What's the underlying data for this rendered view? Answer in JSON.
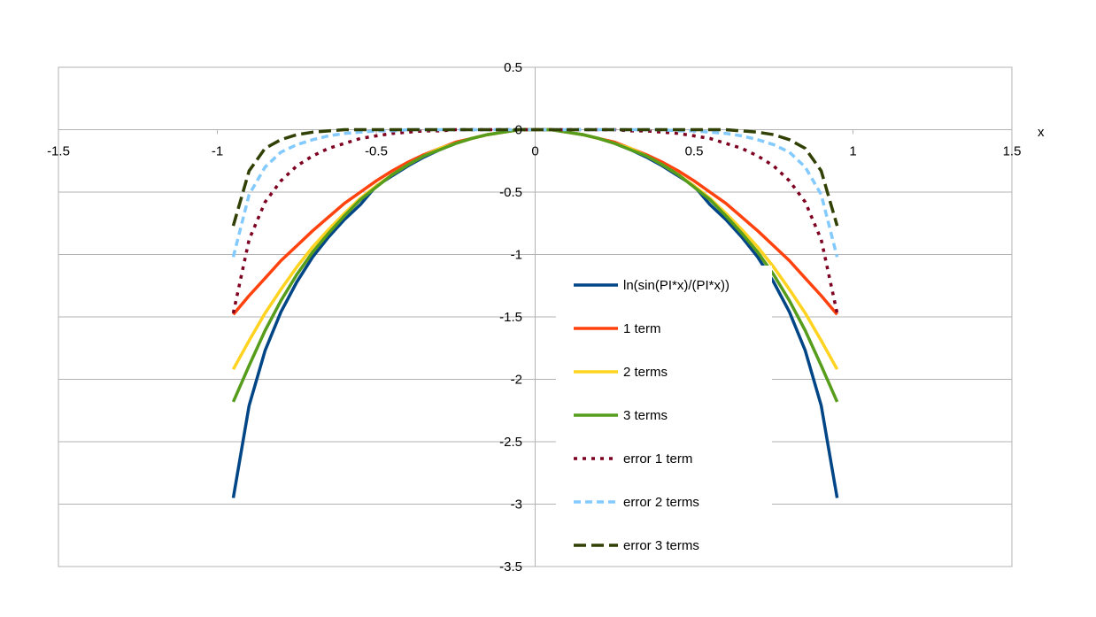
{
  "chart_data": {
    "type": "line",
    "title": "",
    "xlabel": "x",
    "ylabel": "",
    "xlim": [
      -1.5,
      1.5
    ],
    "ylim": [
      -3.5,
      0.5
    ],
    "x_ticks": [
      "-1.5",
      "-1",
      "-0.5",
      "0",
      "0.5",
      "1",
      "1.5"
    ],
    "y_ticks": [
      "0.5",
      "0",
      "-0.5",
      "-1",
      "-1.5",
      "-2",
      "-2.5",
      "-3",
      "-3.5"
    ],
    "grid": true,
    "legend_position": "center-right",
    "x": [
      -0.95,
      -0.9,
      -0.85,
      -0.8,
      -0.75,
      -0.7,
      -0.65,
      -0.6,
      -0.55,
      -0.5,
      -0.45,
      -0.4,
      -0.35,
      -0.3,
      -0.25,
      -0.2,
      -0.15,
      -0.1,
      -0.05,
      0,
      0.05,
      0.1,
      0.15,
      0.2,
      0.25,
      0.3,
      0.35,
      0.4,
      0.45,
      0.5,
      0.55,
      0.6,
      0.65,
      0.7,
      0.75,
      0.8,
      0.85,
      0.9,
      0.95
    ],
    "series": [
      {
        "name": "ln(sin(PI*x)/(PI*x))",
        "color": "#004586",
        "dash": "solid",
        "values": [
          -2.95,
          -2.21,
          -1.77,
          -1.46,
          -1.22,
          -1.02,
          -0.86,
          -0.72,
          -0.6,
          -0.45,
          -0.37,
          -0.29,
          -0.22,
          -0.16,
          -0.11,
          -0.07,
          -0.04,
          -0.02,
          0,
          0,
          0,
          -0.02,
          -0.04,
          -0.07,
          -0.11,
          -0.16,
          -0.22,
          -0.29,
          -0.37,
          -0.45,
          -0.6,
          -0.72,
          -0.86,
          -1.02,
          -1.22,
          -1.46,
          -1.77,
          -2.21,
          -2.95
        ]
      },
      {
        "name": "1 term",
        "color": "#ff420e",
        "dash": "solid",
        "values": [
          -1.48,
          -1.33,
          -1.19,
          -1.05,
          -0.93,
          -0.81,
          -0.7,
          -0.59,
          -0.5,
          -0.41,
          -0.33,
          -0.26,
          -0.2,
          -0.15,
          -0.1,
          -0.07,
          -0.04,
          -0.02,
          0,
          0,
          0,
          -0.02,
          -0.04,
          -0.07,
          -0.1,
          -0.15,
          -0.2,
          -0.26,
          -0.33,
          -0.41,
          -0.5,
          -0.59,
          -0.7,
          -0.81,
          -0.93,
          -1.05,
          -1.19,
          -1.33,
          -1.48
        ]
      },
      {
        "name": "2 terms",
        "color": "#ffd320",
        "dash": "solid",
        "values": [
          -1.92,
          -1.69,
          -1.47,
          -1.28,
          -1.1,
          -0.94,
          -0.8,
          -0.67,
          -0.55,
          -0.45,
          -0.36,
          -0.28,
          -0.21,
          -0.15,
          -0.11,
          -0.07,
          -0.04,
          -0.02,
          0,
          0,
          0,
          -0.02,
          -0.04,
          -0.07,
          -0.11,
          -0.15,
          -0.21,
          -0.28,
          -0.36,
          -0.45,
          -0.55,
          -0.67,
          -0.8,
          -0.94,
          -1.1,
          -1.28,
          -1.47,
          -1.69,
          -1.92
        ]
      },
      {
        "name": "3 terms",
        "color": "#579d1c",
        "dash": "solid",
        "values": [
          -2.18,
          -1.89,
          -1.61,
          -1.37,
          -1.16,
          -0.98,
          -0.83,
          -0.69,
          -0.56,
          -0.46,
          -0.36,
          -0.28,
          -0.21,
          -0.16,
          -0.11,
          -0.07,
          -0.04,
          -0.02,
          0,
          0,
          0,
          -0.02,
          -0.04,
          -0.07,
          -0.11,
          -0.16,
          -0.21,
          -0.28,
          -0.36,
          -0.46,
          -0.56,
          -0.69,
          -0.83,
          -0.98,
          -1.16,
          -1.37,
          -1.61,
          -1.89,
          -2.18
        ]
      },
      {
        "name": "error 1 term",
        "color": "#7e0021",
        "dash": "dot",
        "values": [
          -1.47,
          -0.88,
          -0.58,
          -0.41,
          -0.29,
          -0.21,
          -0.15,
          -0.11,
          -0.07,
          -0.05,
          -0.03,
          -0.02,
          -0.01,
          -0.01,
          0,
          0,
          0,
          0,
          0,
          0,
          0,
          0,
          0,
          0,
          0,
          -0.01,
          -0.01,
          -0.02,
          -0.03,
          -0.05,
          -0.07,
          -0.11,
          -0.15,
          -0.21,
          -0.29,
          -0.41,
          -0.58,
          -0.88,
          -1.47
        ]
      },
      {
        "name": "error 2 terms",
        "color": "#83caff",
        "dash": "dash",
        "values": [
          -1.02,
          -0.52,
          -0.3,
          -0.18,
          -0.12,
          -0.08,
          -0.05,
          -0.03,
          -0.02,
          -0.01,
          -0.01,
          0,
          0,
          0,
          0,
          0,
          0,
          0,
          0,
          0,
          0,
          0,
          0,
          0,
          0,
          0,
          0,
          0,
          -0.01,
          -0.01,
          -0.02,
          -0.03,
          -0.05,
          -0.08,
          -0.12,
          -0.18,
          -0.3,
          -0.52,
          -1.02
        ]
      },
      {
        "name": "error 3 terms",
        "color": "#314004",
        "dash": "longdash",
        "values": [
          -0.77,
          -0.33,
          -0.15,
          -0.08,
          -0.04,
          -0.02,
          -0.01,
          0,
          0,
          0,
          0,
          0,
          0,
          0,
          0,
          0,
          0,
          0,
          0,
          0,
          0,
          0,
          0,
          0,
          0,
          0,
          0,
          0,
          0,
          0,
          0,
          0,
          -0.01,
          -0.02,
          -0.04,
          -0.08,
          -0.15,
          -0.33,
          -0.77
        ]
      }
    ]
  }
}
